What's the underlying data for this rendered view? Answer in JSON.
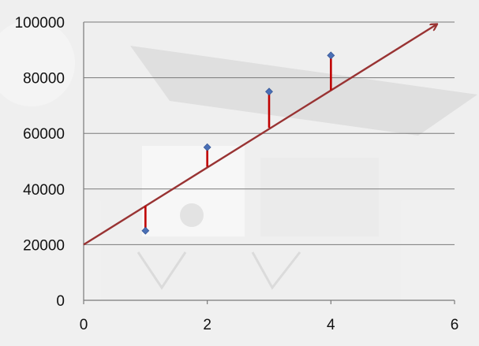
{
  "chart_data": {
    "type": "scatter",
    "title": "",
    "xlabel": "",
    "ylabel": "",
    "xlim": [
      0,
      6
    ],
    "ylim": [
      0,
      100000
    ],
    "x_ticks": [
      0,
      2,
      4,
      6
    ],
    "y_ticks": [
      0,
      20000,
      40000,
      60000,
      80000,
      100000
    ],
    "x_tick_labels": [
      "0",
      "2",
      "4",
      "6"
    ],
    "y_tick_labels": [
      "0",
      "20000",
      "40000",
      "60000",
      "80000",
      "100000"
    ],
    "grid": "horizontal",
    "legend": "none",
    "series": [
      {
        "type": "scatter",
        "x": [
          1,
          2,
          3,
          4
        ],
        "y": [
          25000,
          55000,
          75000,
          88000
        ],
        "marker": "diamond",
        "color": "#4a6fb5"
      }
    ],
    "fit_line": {
      "x": [
        0,
        5.7
      ],
      "y": [
        20000,
        99000
      ],
      "color": "#993333",
      "arrow": true
    },
    "residuals": {
      "x": [
        1,
        2,
        3,
        4
      ],
      "from_y": [
        34000,
        48000,
        62000,
        75500
      ],
      "to_y": [
        25000,
        55000,
        75000,
        88000
      ],
      "color": "#c00000"
    }
  }
}
